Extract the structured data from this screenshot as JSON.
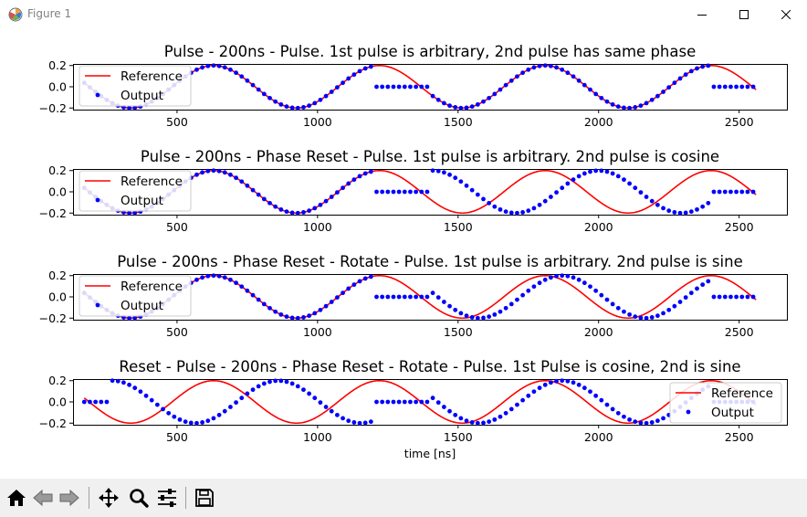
{
  "window": {
    "title": "Figure 1"
  },
  "toolbar": {
    "buttons": [
      {
        "name": "home-button",
        "icon": "home-icon"
      },
      {
        "name": "back-button",
        "icon": "back-arrow-icon"
      },
      {
        "name": "forward-button",
        "icon": "forward-arrow-icon"
      },
      {
        "name": "pan-button",
        "icon": "pan-icon"
      },
      {
        "name": "zoom-button",
        "icon": "zoom-icon"
      },
      {
        "name": "configure-subplots-button",
        "icon": "sliders-icon"
      },
      {
        "name": "save-button",
        "icon": "save-icon"
      }
    ]
  },
  "colors": {
    "reference": "#ff0000",
    "output": "#0000ff"
  },
  "chart_data": [
    {
      "type": "line",
      "title": "Pulse - 200ns - Pulse. 1st pulse is arbitrary, 2nd pulse has same phase",
      "xlabel": "",
      "ylabel": "",
      "xlim": [
        130,
        2670
      ],
      "ylim": [
        -0.215,
        0.215
      ],
      "xticks": [
        500,
        1000,
        1500,
        2000,
        2500
      ],
      "yticks": [
        0.2,
        0.0,
        -0.2
      ],
      "ytick_labels": [
        "0.2",
        "0.0",
        "−0.2"
      ],
      "legend_loc": "upper-left",
      "reference": {
        "name": "Reference",
        "amplitude": 0.2,
        "period_ns": 590,
        "phase_rad": 0.0,
        "peak_x": 630,
        "x_range": [
          170,
          2560
        ]
      },
      "output": {
        "name": "Output",
        "pattern": "active-only",
        "step_ns": 20,
        "x_range": [
          170,
          2560
        ],
        "segments": [
          {
            "x_range": [
              170,
              1190
            ],
            "mode": "follow",
            "amplitude": 0.2,
            "period_ns": 590,
            "peak_x": 630
          },
          {
            "x_range": [
              1210,
              1390
            ],
            "mode": "constant",
            "value": 0.0
          },
          {
            "x_range": [
              1410,
              2390
            ],
            "mode": "follow",
            "amplitude": 0.2,
            "period_ns": 590,
            "peak_x": 630
          },
          {
            "x_range": [
              2410,
              2560
            ],
            "mode": "constant",
            "value": 0.0
          }
        ]
      }
    },
    {
      "type": "line",
      "title": "Pulse - 200ns - Phase Reset - Pulse. 1st pulse is arbitrary. 2nd pulse is cosine",
      "xlabel": "",
      "ylabel": "",
      "xlim": [
        130,
        2670
      ],
      "ylim": [
        -0.215,
        0.215
      ],
      "xticks": [
        500,
        1000,
        1500,
        2000,
        2500
      ],
      "yticks": [
        0.2,
        0.0,
        -0.2
      ],
      "ytick_labels": [
        "0.2",
        "0.0",
        "−0.2"
      ],
      "legend_loc": "upper-left",
      "reference": {
        "name": "Reference",
        "amplitude": 0.2,
        "period_ns": 590,
        "peak_x": 630,
        "x_range": [
          170,
          2560
        ]
      },
      "output": {
        "name": "Output",
        "step_ns": 20,
        "segments": [
          {
            "x_range": [
              170,
              1190
            ],
            "mode": "follow",
            "amplitude": 0.2,
            "period_ns": 590,
            "peak_x": 630
          },
          {
            "x_range": [
              1210,
              1390
            ],
            "mode": "constant",
            "value": 0.0
          },
          {
            "x_range": [
              1410,
              2390
            ],
            "mode": "follow",
            "amplitude": 0.2,
            "period_ns": 590,
            "peak_x": 1410
          },
          {
            "x_range": [
              2410,
              2560
            ],
            "mode": "constant",
            "value": 0.0
          }
        ]
      }
    },
    {
      "type": "line",
      "title": "Pulse - 200ns - Phase Reset - Rotate - Pulse. 1st pulse is arbitrary. 2nd pulse is sine",
      "xlabel": "",
      "ylabel": "",
      "xlim": [
        130,
        2670
      ],
      "ylim": [
        -0.215,
        0.215
      ],
      "xticks": [
        500,
        1000,
        1500,
        2000,
        2500
      ],
      "yticks": [
        0.2,
        0.0,
        -0.2
      ],
      "ytick_labels": [
        "0.2",
        "0.0",
        "−0.2"
      ],
      "legend_loc": "upper-left",
      "reference": {
        "name": "Reference",
        "amplitude": 0.2,
        "period_ns": 590,
        "peak_x": 630,
        "x_range": [
          170,
          2560
        ]
      },
      "output": {
        "name": "Output",
        "step_ns": 20,
        "segments": [
          {
            "x_range": [
              170,
              1190
            ],
            "mode": "follow",
            "amplitude": 0.2,
            "period_ns": 590,
            "peak_x": 630
          },
          {
            "x_range": [
              1210,
              1390
            ],
            "mode": "constant",
            "value": 0.0
          },
          {
            "x_range": [
              1410,
              2390
            ],
            "mode": "follow",
            "amplitude": 0.2,
            "period_ns": 590,
            "peak_x": 1870
          },
          {
            "x_range": [
              2410,
              2560
            ],
            "mode": "constant",
            "value": 0.0
          }
        ]
      }
    },
    {
      "type": "line",
      "title": "Reset - Pulse - 200ns - Phase Reset - Rotate - Pulse. 1st Pulse is cosine, 2nd is sine",
      "xlabel": "time [ns]",
      "ylabel": "",
      "xlim": [
        130,
        2670
      ],
      "ylim": [
        -0.215,
        0.215
      ],
      "xticks": [
        500,
        1000,
        1500,
        2000,
        2500
      ],
      "yticks": [
        0.2,
        0.0,
        -0.2
      ],
      "ytick_labels": [
        "0.2",
        "0.0",
        "−0.2"
      ],
      "legend_loc": "lower-right",
      "reference": {
        "name": "Reference",
        "amplitude": 0.2,
        "period_ns": 590,
        "peak_x": 630,
        "x_range": [
          170,
          2560
        ]
      },
      "output": {
        "name": "Output",
        "step_ns": 20,
        "segments": [
          {
            "x_range": [
              170,
              250
            ],
            "mode": "constant",
            "value": 0.0
          },
          {
            "x_range": [
              270,
              1190
            ],
            "mode": "follow",
            "amplitude": 0.2,
            "period_ns": 590,
            "peak_x": 270
          },
          {
            "x_range": [
              1210,
              1390
            ],
            "mode": "constant",
            "value": 0.0
          },
          {
            "x_range": [
              1410,
              2390
            ],
            "mode": "follow",
            "amplitude": 0.2,
            "period_ns": 590,
            "peak_x": 1870
          },
          {
            "x_range": [
              2410,
              2560
            ],
            "mode": "constant",
            "value": 0.0
          }
        ]
      }
    }
  ]
}
